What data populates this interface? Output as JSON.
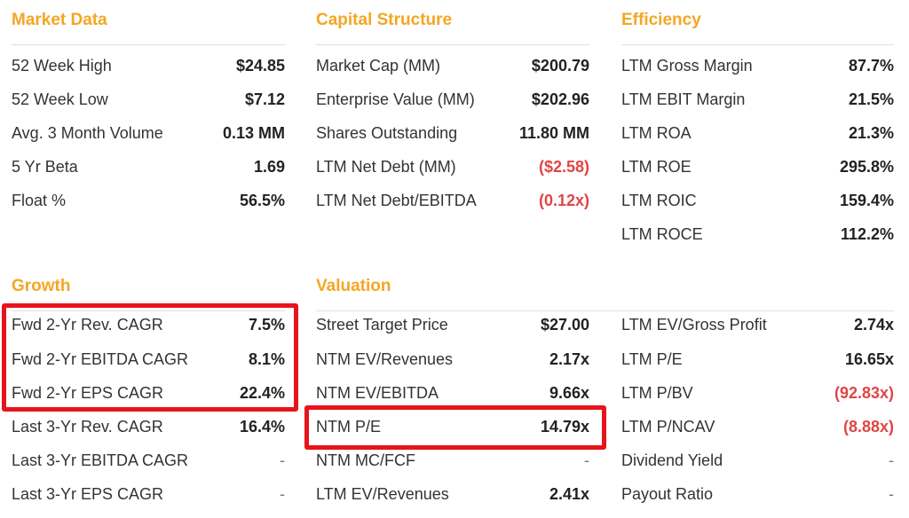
{
  "colors": {
    "accent": "#f5a623",
    "negative": "#e04545",
    "highlight": "#e8141c"
  },
  "market_data": {
    "title": "Market Data",
    "rows": [
      {
        "label": "52 Week High",
        "value": "$24.85"
      },
      {
        "label": "52 Week Low",
        "value": "$7.12"
      },
      {
        "label": "Avg. 3 Month Volume",
        "value": "0.13 MM"
      },
      {
        "label": "5 Yr Beta",
        "value": "1.69"
      },
      {
        "label": "Float %",
        "value": "56.5%"
      }
    ]
  },
  "capital_structure": {
    "title": "Capital Structure",
    "rows": [
      {
        "label": "Market Cap (MM)",
        "value": "$200.79"
      },
      {
        "label": "Enterprise Value (MM)",
        "value": "$202.96"
      },
      {
        "label": "Shares Outstanding",
        "value": "11.80 MM"
      },
      {
        "label": "LTM Net Debt (MM)",
        "value": "($2.58)"
      },
      {
        "label": "LTM Net Debt/EBITDA",
        "value": "(0.12x)"
      }
    ]
  },
  "efficiency": {
    "title": "Efficiency",
    "rows": [
      {
        "label": "LTM Gross Margin",
        "value": "87.7%"
      },
      {
        "label": "LTM EBIT Margin",
        "value": "21.5%"
      },
      {
        "label": "LTM ROA",
        "value": "21.3%"
      },
      {
        "label": "LTM ROE",
        "value": "295.8%"
      },
      {
        "label": "LTM ROIC",
        "value": "159.4%"
      },
      {
        "label": "LTM ROCE",
        "value": "112.2%"
      }
    ]
  },
  "growth": {
    "title": "Growth",
    "rows": [
      {
        "label": "Fwd 2-Yr Rev. CAGR",
        "value": "7.5%"
      },
      {
        "label": "Fwd 2-Yr EBITDA CAGR",
        "value": "8.1%"
      },
      {
        "label": "Fwd 2-Yr EPS CAGR",
        "value": "22.4%"
      },
      {
        "label": "Last 3-Yr Rev. CAGR",
        "value": "16.4%"
      },
      {
        "label": "Last 3-Yr EBITDA CAGR",
        "value": "-"
      },
      {
        "label": "Last 3-Yr EPS CAGR",
        "value": "-"
      }
    ]
  },
  "valuation": {
    "title": "Valuation",
    "left_rows": [
      {
        "label": "Street Target Price",
        "value": "$27.00"
      },
      {
        "label": "NTM EV/Revenues",
        "value": "2.17x"
      },
      {
        "label": "NTM EV/EBITDA",
        "value": "9.66x"
      },
      {
        "label": "NTM P/E",
        "value": "14.79x"
      },
      {
        "label": "NTM MC/FCF",
        "value": "-"
      },
      {
        "label": "LTM EV/Revenues",
        "value": "2.41x"
      }
    ],
    "right_rows": [
      {
        "label": "LTM EV/Gross Profit",
        "value": "2.74x"
      },
      {
        "label": "LTM P/E",
        "value": "16.65x"
      },
      {
        "label": "LTM P/BV",
        "value": "(92.83x)"
      },
      {
        "label": "LTM P/NCAV",
        "value": "(8.88x)"
      },
      {
        "label": "Dividend Yield",
        "value": "-"
      },
      {
        "label": "Payout Ratio",
        "value": "-"
      }
    ]
  }
}
